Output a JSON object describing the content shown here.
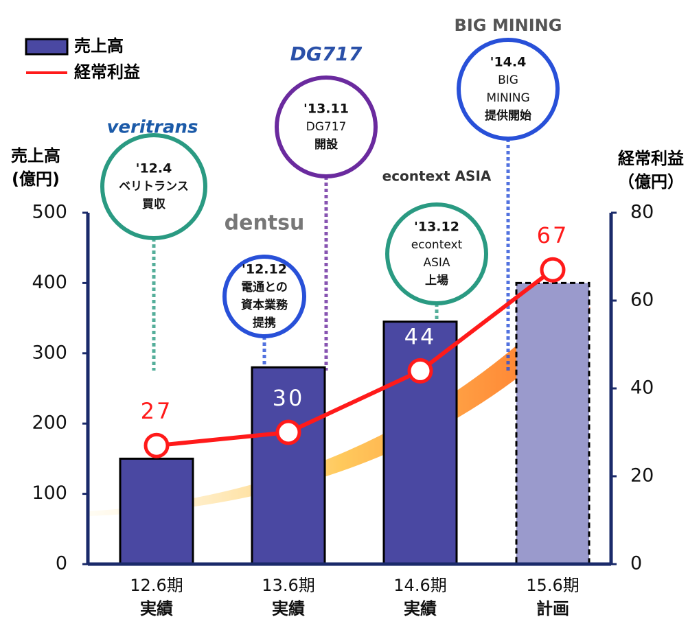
{
  "chart_data": {
    "type": "bar-line",
    "legend": {
      "bar": "売上高",
      "line": "経常利益"
    },
    "ylabel": [
      "売上高",
      "(億円)"
    ],
    "y2label": [
      "経常利益",
      "（億円）"
    ],
    "categories": [
      [
        "12.6期",
        "実績"
      ],
      [
        "13.6期",
        "実績"
      ],
      [
        "14.6期",
        "実績"
      ],
      [
        "15.6期",
        "計画"
      ]
    ],
    "series": [
      {
        "name": "売上高",
        "type": "bar",
        "color": "#4a48a2",
        "colors": [
          "#4a48a2",
          "#4a48a2",
          "#4a48a2",
          "#9a9acc"
        ],
        "values": [
          150,
          280,
          345,
          400
        ]
      },
      {
        "name": "経常利益",
        "type": "line",
        "axis": "y2",
        "color": "#ff1a1a",
        "values": [
          27,
          30,
          44,
          67
        ]
      }
    ],
    "ylim": [
      0,
      500
    ],
    "yticks": [
      0,
      100,
      200,
      300,
      400,
      500
    ],
    "y2lim": [
      0,
      80
    ],
    "y2ticks": [
      0,
      20,
      40,
      60,
      80
    ],
    "annotations": [
      {
        "lines": [
          "'12.4",
          "ベリトランス",
          "買収"
        ],
        "logo": "veritrans",
        "color": "#2a9a82"
      },
      {
        "lines": [
          "'12.12",
          "電通との",
          "資本業務",
          "提携"
        ],
        "logo": "dentsu",
        "color": "#2850d8"
      },
      {
        "lines": [
          "'13.11",
          "DG717",
          "開設"
        ],
        "logo": "DG717",
        "color": "#6a2a9e"
      },
      {
        "lines": [
          "'13.12",
          "econtext",
          "ASIA",
          "上場"
        ],
        "logo": "econtext ASIA",
        "color": "#2a9a82"
      },
      {
        "lines": [
          "'14.4",
          "BIG",
          "MINING",
          "提供開始"
        ],
        "logo": "BIG MINING",
        "color": "#2850d8"
      }
    ]
  }
}
